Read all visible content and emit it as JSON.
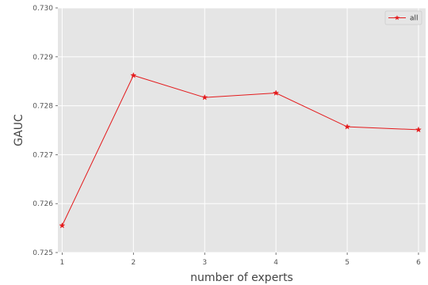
{
  "chart_data": {
    "type": "line",
    "x": [
      1,
      2,
      3,
      4,
      5,
      6
    ],
    "xticks": [
      "1",
      "2",
      "3",
      "4",
      "5",
      "6"
    ],
    "yticks": [
      "0.725",
      "0.726",
      "0.727",
      "0.728",
      "0.729",
      "0.730"
    ],
    "ytick_values": [
      0.725,
      0.726,
      0.727,
      0.728,
      0.729,
      0.73
    ],
    "series": [
      {
        "name": "all",
        "values": [
          0.72555,
          0.72862,
          0.72817,
          0.72826,
          0.72757,
          0.72751
        ],
        "color": "#e41a1c",
        "marker": "star"
      }
    ],
    "xlabel": "number of  experts",
    "ylabel": "GAUC",
    "xlim": [
      0.94,
      6.1
    ],
    "ylim": [
      0.725,
      0.73
    ],
    "grid": true,
    "legend_position": "top-right",
    "background_color": "#e5e5e5",
    "grid_color": "#ffffff"
  }
}
